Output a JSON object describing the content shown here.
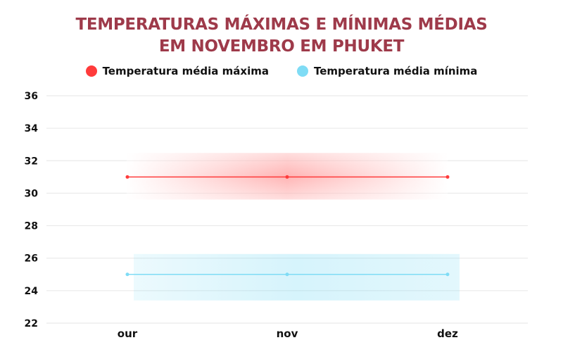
{
  "chart_data": {
    "type": "line",
    "title_lines": [
      "TEMPERATURAS MÁXIMAS E MÍNIMAS MÉDIAS",
      "EM NOVEMBRO EM PHUKET"
    ],
    "categories": [
      "our",
      "nov",
      "dez"
    ],
    "series": [
      {
        "name": "Temperatura média máxima",
        "values": [
          31,
          31,
          31
        ],
        "color": "#ff3b3b"
      },
      {
        "name": "Temperatura média mínima",
        "values": [
          25,
          25,
          25
        ],
        "color": "#7fdcf5"
      }
    ],
    "y_ticks": [
      22,
      24,
      26,
      28,
      30,
      32,
      34,
      36
    ],
    "ylim": [
      22,
      36
    ],
    "grid": true,
    "legend_position": "top-center"
  }
}
